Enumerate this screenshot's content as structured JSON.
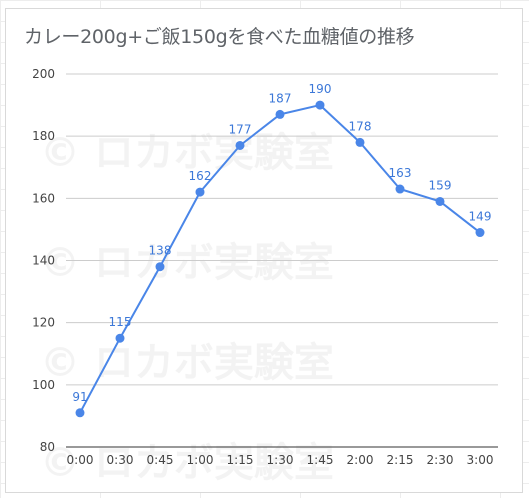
{
  "chart_data": {
    "type": "line",
    "title": "カレー200g+ご飯150gを食べた血糖値の推移",
    "categories": [
      "0:00",
      "0:30",
      "0:45",
      "1:00",
      "1:15",
      "1:30",
      "1:45",
      "2:00",
      "2:15",
      "2:30",
      "3:00"
    ],
    "series": [
      {
        "values": [
          91,
          115,
          138,
          162,
          177,
          187,
          190,
          178,
          163,
          159,
          149
        ]
      }
    ],
    "ylim": [
      80,
      200
    ],
    "yticks": [
      80,
      100,
      120,
      140,
      160,
      180,
      200
    ],
    "grid": true,
    "data_labels": true,
    "line_color": "#4a86e8",
    "label_color": "#3c78d8"
  },
  "watermark": "© ロカボ実験室"
}
